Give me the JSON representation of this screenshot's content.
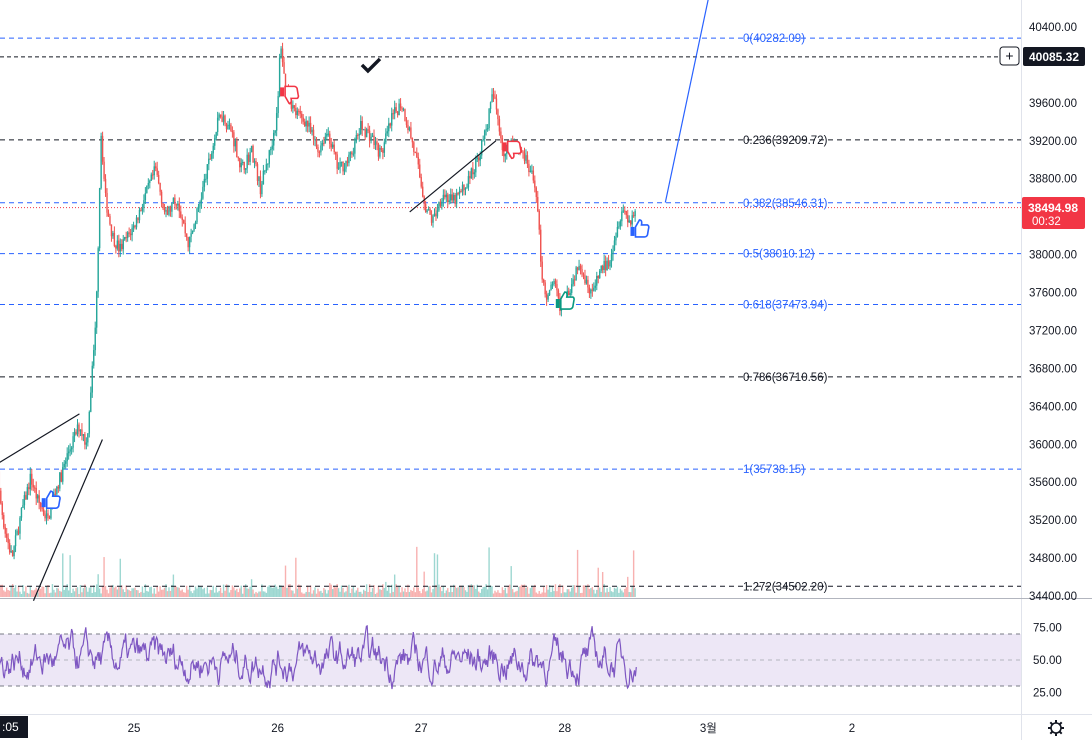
{
  "chart_data": {
    "type": "candlestick",
    "price_axis": {
      "ylim": [
        34400,
        40500
      ],
      "ticks": [
        "40400.00",
        "39600.00",
        "39200.00",
        "38800.00",
        "38400.00",
        "38000.00",
        "37600.00",
        "37200.00",
        "36800.00",
        "36400.00",
        "36000.00",
        "35600.00",
        "35200.00",
        "34800.00",
        "34400.00"
      ],
      "tick_values": [
        40400,
        39600,
        39200,
        38800,
        38400,
        38000,
        37600,
        37200,
        36800,
        36400,
        36000,
        35600,
        35200,
        34800,
        34400
      ]
    },
    "x_axis": {
      "labels": [
        {
          "text": "25",
          "day": 25
        },
        {
          "text": "26",
          "day": 26
        },
        {
          "text": "27",
          "day": 27
        },
        {
          "text": "28",
          "day": 28
        },
        {
          "text": "3월",
          "day": 29
        },
        {
          "text": "2",
          "day": 30
        }
      ],
      "partial_left_label": ":05"
    },
    "fib_levels": [
      {
        "ratio": 0,
        "label": "0(40282.09)",
        "price": 40282.09,
        "color": "#2962ff",
        "dash": true
      },
      {
        "ratio": 0.236,
        "label": "0.236(39209.72)",
        "price": 39209.72,
        "color": "#131722",
        "dash": true
      },
      {
        "ratio": 0.382,
        "label": "0.382(38546.31)",
        "price": 38546.31,
        "color": "#2962ff",
        "dash": true
      },
      {
        "ratio": 0.5,
        "label": "0.5(38010.12)",
        "price": 38010.12,
        "color": "#2962ff",
        "dash": true
      },
      {
        "ratio": 0.618,
        "label": "0.618(37473.94)",
        "price": 37473.94,
        "color": "#2962ff",
        "dash": true
      },
      {
        "ratio": 0.786,
        "label": "0.786(36710.56)",
        "price": 36710.56,
        "color": "#131722",
        "dash": true
      },
      {
        "ratio": 1,
        "label": "1(35738.15)",
        "price": 35738.15,
        "color": "#2962ff",
        "dash": true
      },
      {
        "ratio": 1.272,
        "label": "1.272(34502.20)",
        "price": 34502.2,
        "color": "#131722",
        "dash": true
      }
    ],
    "alert_price": {
      "label": "40085.32",
      "price": 40085.32
    },
    "last_price": {
      "label": "38494.98",
      "countdown": "00:32",
      "price": 38494.98,
      "color": "#f23645"
    },
    "oscillator": {
      "ylim": [
        10,
        90
      ],
      "ticks": [
        "75.00",
        "50.00",
        "25.00"
      ],
      "tick_values": [
        75,
        50,
        25
      ],
      "upper": 70,
      "middle": 50,
      "lower": 30,
      "line_color": "#7e57c2",
      "band_color": "#ede7f6"
    },
    "price_path": [
      [
        23.98,
        37100
      ],
      [
        24.02,
        36700
      ],
      [
        24.06,
        35500
      ],
      [
        24.1,
        35100
      ],
      [
        24.15,
        34800
      ],
      [
        24.22,
        35300
      ],
      [
        24.28,
        35650
      ],
      [
        24.33,
        35400
      ],
      [
        24.4,
        35200
      ],
      [
        24.45,
        35500
      ],
      [
        24.5,
        35700
      ],
      [
        24.55,
        35950
      ],
      [
        24.62,
        36200
      ],
      [
        24.67,
        36000
      ],
      [
        24.7,
        36600
      ],
      [
        24.73,
        37200
      ],
      [
        24.75,
        38100
      ],
      [
        24.77,
        39300
      ],
      [
        24.8,
        38600
      ],
      [
        24.85,
        38200
      ],
      [
        24.9,
        38050
      ],
      [
        25.0,
        38300
      ],
      [
        25.1,
        38700
      ],
      [
        25.15,
        38900
      ],
      [
        25.22,
        38400
      ],
      [
        25.3,
        38600
      ],
      [
        25.38,
        38100
      ],
      [
        25.45,
        38500
      ],
      [
        25.55,
        39150
      ],
      [
        25.6,
        39500
      ],
      [
        25.68,
        39300
      ],
      [
        25.75,
        38900
      ],
      [
        25.82,
        39100
      ],
      [
        25.88,
        38700
      ],
      [
        25.95,
        39100
      ],
      [
        26.0,
        39500
      ],
      [
        26.02,
        40282
      ],
      [
        26.05,
        39800
      ],
      [
        26.12,
        39500
      ],
      [
        26.2,
        39400
      ],
      [
        26.28,
        39100
      ],
      [
        26.35,
        39300
      ],
      [
        26.42,
        38900
      ],
      [
        26.5,
        39000
      ],
      [
        26.58,
        39350
      ],
      [
        26.65,
        39250
      ],
      [
        26.72,
        39050
      ],
      [
        26.8,
        39450
      ],
      [
        26.86,
        39600
      ],
      [
        26.92,
        39300
      ],
      [
        26.98,
        38900
      ],
      [
        27.03,
        38500
      ],
      [
        27.08,
        38350
      ],
      [
        27.15,
        38650
      ],
      [
        27.22,
        38550
      ],
      [
        27.3,
        38700
      ],
      [
        27.38,
        38950
      ],
      [
        27.45,
        39300
      ],
      [
        27.5,
        39700
      ],
      [
        27.54,
        39400
      ],
      [
        27.58,
        39000
      ],
      [
        27.63,
        39200
      ],
      [
        27.7,
        39100
      ],
      [
        27.75,
        38900
      ],
      [
        27.8,
        38700
      ],
      [
        27.84,
        37800
      ],
      [
        27.88,
        37500
      ],
      [
        27.92,
        37750
      ],
      [
        27.96,
        37450
      ],
      [
        28.0,
        37550
      ],
      [
        28.05,
        37700
      ],
      [
        28.1,
        37950
      ],
      [
        28.15,
        37700
      ],
      [
        28.2,
        37600
      ],
      [
        28.25,
        37850
      ],
      [
        28.3,
        37900
      ],
      [
        28.35,
        38200
      ],
      [
        28.4,
        38500
      ],
      [
        28.45,
        38350
      ],
      [
        28.5,
        38495
      ]
    ],
    "volume_level": [
      0.3,
      0.7
    ],
    "drawings": [
      {
        "type": "line",
        "points": [
          [
            24.0,
            35750
          ],
          [
            24.62,
            36320
          ]
        ]
      },
      {
        "type": "line",
        "points": [
          [
            24.3,
            34350
          ],
          [
            24.78,
            36050
          ]
        ]
      },
      {
        "type": "line",
        "points": [
          [
            26.92,
            38450
          ],
          [
            27.52,
            39200
          ]
        ]
      },
      {
        "type": "line",
        "color": "#2962ff",
        "points": [
          [
            28.7,
            38550
          ],
          [
            29.0,
            40700
          ]
        ]
      }
    ],
    "markers": [
      {
        "kind": "thumb-down",
        "color": "#f23645",
        "at": [
          26.08,
          39700
        ]
      },
      {
        "kind": "thumb-down",
        "color": "#f23645",
        "at": [
          27.63,
          39120
        ]
      },
      {
        "kind": "thumb-up",
        "color": "#2962ff",
        "at": [
          24.42,
          35400
        ]
      },
      {
        "kind": "thumb-up",
        "color": "#089981",
        "at": [
          28.0,
          37500
        ]
      },
      {
        "kind": "thumb-up",
        "color": "#2962ff",
        "at": [
          28.52,
          38260
        ]
      },
      {
        "kind": "checkmark",
        "color": "#131722",
        "at": [
          26.65,
          40000
        ]
      }
    ]
  }
}
